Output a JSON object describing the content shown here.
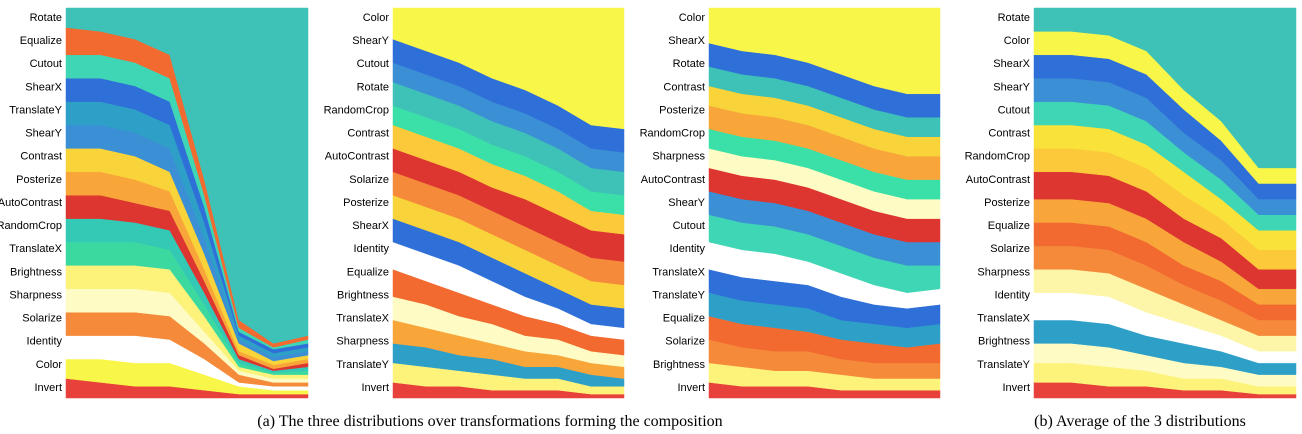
{
  "chart_data": [
    {
      "type": "stacked-area",
      "ylim": [
        0,
        100
      ],
      "series": [
        {
          "name": "Invert",
          "color": "#e8403a",
          "values": [
            5,
            4,
            3,
            3,
            2,
            1,
            1,
            1
          ]
        },
        {
          "name": "Color",
          "color": "#f9f64a",
          "values": [
            5,
            6,
            6,
            6,
            4,
            2,
            1,
            1
          ]
        },
        {
          "name": "Identity",
          "color": "#ffffff",
          "values": [
            6,
            6,
            7,
            6,
            4,
            1,
            1,
            1
          ]
        },
        {
          "name": "Solarize",
          "color": "#f58a3a",
          "values": [
            6,
            6,
            6,
            6,
            4,
            2,
            1,
            1
          ]
        },
        {
          "name": "Sharpness",
          "color": "#fefcc4",
          "values": [
            6,
            6,
            6,
            6,
            3,
            1,
            1,
            1
          ]
        },
        {
          "name": "Brightness",
          "color": "#fdf27a",
          "values": [
            6,
            6,
            6,
            6,
            4,
            1,
            1,
            1
          ]
        },
        {
          "name": "TranslateX",
          "color": "#3bd9a0",
          "values": [
            6,
            6,
            6,
            5,
            3,
            1,
            0.5,
            1
          ]
        },
        {
          "name": "RandomCrop",
          "color": "#33c9b5",
          "values": [
            6,
            6,
            5,
            5,
            3,
            1,
            0.5,
            1
          ]
        },
        {
          "name": "AutoContrast",
          "color": "#dd3530",
          "values": [
            6,
            6,
            5,
            5,
            3,
            1,
            0.5,
            1
          ]
        },
        {
          "name": "Posterize",
          "color": "#f8a53a",
          "values": [
            6,
            6,
            6,
            5,
            3,
            1,
            1,
            1
          ]
        },
        {
          "name": "Contrast",
          "color": "#f9d33a",
          "values": [
            6,
            6,
            6,
            5,
            4,
            2,
            1,
            1
          ]
        },
        {
          "name": "ShearY",
          "color": "#3b8fd5",
          "values": [
            6,
            6,
            6,
            6,
            4,
            1,
            1,
            1
          ]
        },
        {
          "name": "TranslateY",
          "color": "#2ea0c8",
          "values": [
            6,
            6,
            6,
            6,
            4,
            1,
            1,
            1
          ]
        },
        {
          "name": "ShearX",
          "color": "#2f6fd8",
          "values": [
            6,
            6,
            6,
            6,
            4,
            1,
            1,
            1
          ]
        },
        {
          "name": "Cutout",
          "color": "#3fd6b5",
          "values": [
            6,
            6,
            6,
            6,
            3,
            1,
            0.5,
            1
          ]
        },
        {
          "name": "Equalize",
          "color": "#f26a30",
          "values": [
            7,
            6,
            6,
            6,
            4,
            2,
            1,
            1
          ]
        },
        {
          "name": "Rotate",
          "color": "#3ec1b6",
          "values": [
            5,
            6,
            8,
            12,
            44,
            80,
            86,
            84
          ]
        }
      ]
    },
    {
      "type": "stacked-area",
      "ylim": [
        0,
        100
      ],
      "series": [
        {
          "name": "Invert",
          "color": "#e8403a",
          "values": [
            4,
            3,
            3,
            2,
            2,
            2,
            1,
            1
          ]
        },
        {
          "name": "TranslateY",
          "color": "#fdf27a",
          "values": [
            5,
            5,
            4,
            4,
            3,
            3,
            2,
            2
          ]
        },
        {
          "name": "Sharpness",
          "color": "#2ea0c8",
          "values": [
            5,
            5,
            4,
            4,
            3,
            3,
            3,
            2
          ]
        },
        {
          "name": "TranslateX",
          "color": "#f8a53a",
          "values": [
            6,
            5,
            5,
            4,
            4,
            3,
            3,
            3
          ]
        },
        {
          "name": "Brightness",
          "color": "#fefcc4",
          "values": [
            6,
            6,
            5,
            5,
            4,
            4,
            3,
            3
          ]
        },
        {
          "name": "Equalize",
          "color": "#f26a30",
          "values": [
            7,
            6,
            6,
            5,
            5,
            4,
            4,
            4
          ]
        },
        {
          "name": "Identity",
          "color": "#ffffff",
          "values": [
            7,
            7,
            7,
            6,
            5,
            4,
            3,
            3
          ]
        },
        {
          "name": "ShearX",
          "color": "#2f6fd8",
          "values": [
            6,
            6,
            6,
            6,
            6,
            5,
            5,
            5
          ]
        },
        {
          "name": "Posterize",
          "color": "#f9d33a",
          "values": [
            6,
            6,
            6,
            6,
            6,
            6,
            6,
            6
          ]
        },
        {
          "name": "Solarize",
          "color": "#f58a3a",
          "values": [
            6,
            6,
            6,
            6,
            6,
            6,
            6,
            6
          ]
        },
        {
          "name": "AutoContrast",
          "color": "#dd3530",
          "values": [
            6,
            6,
            6,
            6,
            7,
            7,
            7,
            7
          ]
        },
        {
          "name": "Contrast",
          "color": "#fcc93a",
          "values": [
            6,
            6,
            6,
            6,
            6,
            6,
            5,
            5
          ]
        },
        {
          "name": "RandomCrop",
          "color": "#3be0a8",
          "values": [
            5,
            5,
            5,
            5,
            5,
            5,
            5,
            5
          ]
        },
        {
          "name": "Rotate",
          "color": "#3ec1b6",
          "values": [
            6,
            6,
            6,
            6,
            6,
            6,
            6,
            6
          ]
        },
        {
          "name": "Cutout",
          "color": "#3b8fd5",
          "values": [
            5,
            5,
            5,
            5,
            5,
            5,
            5,
            5
          ]
        },
        {
          "name": "ShearY",
          "color": "#2f6fd8",
          "values": [
            6,
            6,
            6,
            6,
            6,
            6,
            6,
            6
          ]
        },
        {
          "name": "Color",
          "color": "#f9f64a",
          "values": [
            8,
            11,
            14,
            18,
            21,
            25,
            30,
            31
          ]
        }
      ]
    },
    {
      "type": "stacked-area",
      "ylim": [
        0,
        100
      ],
      "series": [
        {
          "name": "Invert",
          "color": "#e8403a",
          "values": [
            4,
            3,
            3,
            3,
            2,
            2,
            2,
            2
          ]
        },
        {
          "name": "Brightness",
          "color": "#fdf27a",
          "values": [
            5,
            5,
            4,
            4,
            4,
            3,
            3,
            3
          ]
        },
        {
          "name": "Solarize",
          "color": "#f58a3a",
          "values": [
            6,
            5,
            5,
            5,
            4,
            4,
            4,
            4
          ]
        },
        {
          "name": "Equalize",
          "color": "#f26a30",
          "values": [
            6,
            6,
            6,
            5,
            5,
            5,
            4,
            5
          ]
        },
        {
          "name": "TranslateY",
          "color": "#2ea0c8",
          "values": [
            6,
            6,
            6,
            6,
            5,
            5,
            5,
            5
          ]
        },
        {
          "name": "TranslateX",
          "color": "#2f6fd8",
          "values": [
            6,
            6,
            6,
            6,
            6,
            5,
            5,
            5
          ]
        },
        {
          "name": "Identity",
          "color": "#ffffff",
          "values": [
            7,
            7,
            7,
            6,
            6,
            5,
            4,
            4
          ]
        },
        {
          "name": "Cutout",
          "color": "#3fd6b5",
          "values": [
            7,
            7,
            7,
            7,
            7,
            7,
            7,
            6
          ]
        },
        {
          "name": "ShearY",
          "color": "#3b8fd5",
          "values": [
            6,
            6,
            6,
            6,
            6,
            6,
            6,
            6
          ]
        },
        {
          "name": "AutoContrast",
          "color": "#dd3530",
          "values": [
            6,
            6,
            6,
            6,
            6,
            6,
            6,
            6
          ]
        },
        {
          "name": "Sharpness",
          "color": "#fefcc4",
          "values": [
            5,
            5,
            5,
            5,
            5,
            5,
            5,
            5
          ]
        },
        {
          "name": "RandomCrop",
          "color": "#3be0a8",
          "values": [
            5,
            5,
            5,
            5,
            5,
            5,
            5,
            5
          ]
        },
        {
          "name": "Posterize",
          "color": "#f8a53a",
          "values": [
            6,
            6,
            6,
            6,
            6,
            6,
            6,
            6
          ]
        },
        {
          "name": "Contrast",
          "color": "#f9d33a",
          "values": [
            5,
            5,
            5,
            5,
            5,
            5,
            5,
            5
          ]
        },
        {
          "name": "Rotate",
          "color": "#3ec1b6",
          "values": [
            5,
            5,
            5,
            5,
            5,
            5,
            5,
            5
          ]
        },
        {
          "name": "ShearX",
          "color": "#2f6fd8",
          "values": [
            6,
            6,
            6,
            6,
            6,
            6,
            6,
            6
          ]
        },
        {
          "name": "Color",
          "color": "#f9f64a",
          "values": [
            9,
            11,
            12,
            14,
            17,
            20,
            22,
            22
          ]
        }
      ]
    },
    {
      "type": "stacked-area",
      "ylim": [
        0,
        100
      ],
      "series": [
        {
          "name": "Invert",
          "color": "#e8403a",
          "values": [
            4,
            4,
            3,
            3,
            2,
            2,
            1,
            1
          ]
        },
        {
          "name": "TranslateY",
          "color": "#fdf27a",
          "values": [
            5,
            5,
            5,
            4,
            3,
            3,
            2,
            2
          ]
        },
        {
          "name": "Brightness",
          "color": "#fefcc4",
          "values": [
            5,
            5,
            5,
            4,
            4,
            3,
            3,
            3
          ]
        },
        {
          "name": "TranslateX",
          "color": "#2ea0c8",
          "values": [
            6,
            6,
            6,
            5,
            5,
            4,
            3,
            3
          ]
        },
        {
          "name": "Identity",
          "color": "#ffffff",
          "values": [
            7,
            7,
            7,
            6,
            5,
            4,
            3,
            3
          ]
        },
        {
          "name": "Sharpness",
          "color": "#fdf6a8",
          "values": [
            6,
            6,
            6,
            6,
            5,
            4,
            4,
            4
          ]
        },
        {
          "name": "Solarize",
          "color": "#f58a3a",
          "values": [
            6,
            6,
            6,
            6,
            5,
            5,
            4,
            4
          ]
        },
        {
          "name": "Equalize",
          "color": "#f26a30",
          "values": [
            6,
            6,
            6,
            6,
            5,
            5,
            4,
            4
          ]
        },
        {
          "name": "Posterize",
          "color": "#f8a53a",
          "values": [
            6,
            6,
            6,
            6,
            6,
            5,
            4,
            4
          ]
        },
        {
          "name": "AutoContrast",
          "color": "#dd3530",
          "values": [
            7,
            7,
            7,
            7,
            6,
            6,
            5,
            5
          ]
        },
        {
          "name": "RandomCrop",
          "color": "#fcc93a",
          "values": [
            6,
            6,
            6,
            6,
            6,
            5,
            5,
            5
          ]
        },
        {
          "name": "Contrast",
          "color": "#f9e23a",
          "values": [
            6,
            6,
            6,
            6,
            6,
            5,
            5,
            5
          ]
        },
        {
          "name": "Cutout",
          "color": "#3fd6b5",
          "values": [
            6,
            6,
            6,
            6,
            5,
            5,
            4,
            4
          ]
        },
        {
          "name": "ShearY",
          "color": "#3b8fd5",
          "values": [
            6,
            6,
            6,
            6,
            5,
            5,
            4,
            4
          ]
        },
        {
          "name": "ShearX",
          "color": "#2f6fd8",
          "values": [
            6,
            6,
            6,
            6,
            6,
            5,
            4,
            4
          ]
        },
        {
          "name": "Color",
          "color": "#f9f64a",
          "values": [
            6,
            6,
            6,
            6,
            5,
            5,
            4,
            4
          ]
        },
        {
          "name": "Rotate",
          "color": "#3ec1b6",
          "values": [
            6,
            6,
            7,
            11,
            21,
            29,
            41,
            41
          ]
        }
      ]
    }
  ],
  "captions": [
    "(a) The three distributions over transformations forming the composition",
    "(b) Average of the 3 distributions"
  ]
}
